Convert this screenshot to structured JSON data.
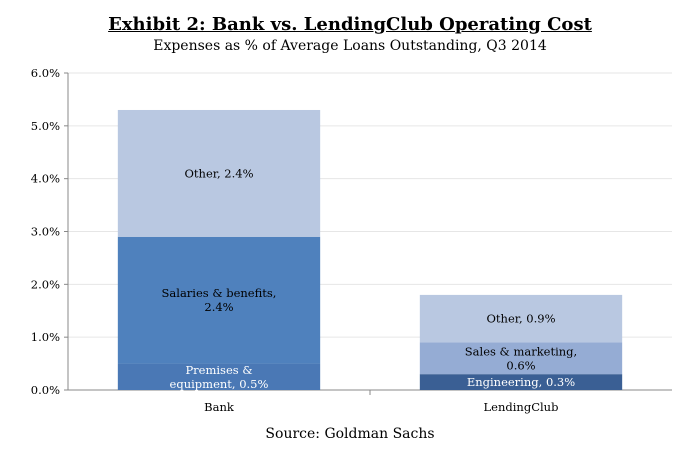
{
  "chart_data": {
    "type": "bar",
    "stacked": true,
    "title": "Exhibit 2: Bank vs. LendingClub Operating Cost",
    "subtitle": "Expenses as % of Average Loans Outstanding, Q3 2014",
    "source": "Source: Goldman Sachs",
    "categories": [
      "Bank",
      "LendingClub"
    ],
    "ylim": [
      0,
      6
    ],
    "yticks": [
      "0.0%",
      "1.0%",
      "2.0%",
      "3.0%",
      "4.0%",
      "5.0%",
      "6.0%"
    ],
    "grid": true,
    "stacks": [
      {
        "category": "Bank",
        "segments": [
          {
            "value": 0.5,
            "label": [
              "Premises &",
              "equipment, 0.5%"
            ],
            "color": "#4a78b5",
            "text_color": "#ffffff"
          },
          {
            "value": 2.4,
            "label": [
              "Salaries & benefits,",
              "2.4%"
            ],
            "color": "#4f81bd",
            "text_color": "#000000"
          },
          {
            "value": 2.4,
            "label": [
              "Other, 2.4%"
            ],
            "color": "#b9c8e1",
            "text_color": "#000000"
          }
        ]
      },
      {
        "category": "LendingClub",
        "segments": [
          {
            "value": 0.3,
            "label": [
              "Engineering, 0.3%"
            ],
            "color": "#3a5f94",
            "text_color": "#ffffff"
          },
          {
            "value": 0.6,
            "label": [
              "Sales & marketing,",
              "0.6%"
            ],
            "color": "#95acd4",
            "text_color": "#000000"
          },
          {
            "value": 0.9,
            "label": [
              "Other, 0.9%"
            ],
            "color": "#b9c8e1",
            "text_color": "#000000"
          }
        ]
      }
    ]
  }
}
